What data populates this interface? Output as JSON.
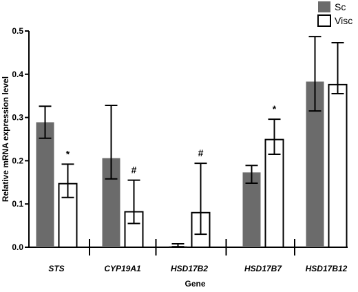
{
  "chart_data": {
    "type": "bar",
    "xlabel": "Gene",
    "ylabel": "Relative mRNA expression level",
    "ylim": [
      0,
      0.5
    ],
    "yticks": [
      "0.0",
      "0.1",
      "0.2",
      "0.3",
      "0.4",
      "0.5"
    ],
    "categories": [
      "STS",
      "CYP19A1",
      "HSD17B2",
      "HSD17B7",
      "HSD17B12"
    ],
    "legend_position": "top-right",
    "series": [
      {
        "name": "Sc",
        "color": "#6b6b6b",
        "fill": "solid",
        "values": [
          0.289,
          0.206,
          0.003,
          0.173,
          0.383
        ],
        "error_low": [
          0.252,
          0.158,
          0.001,
          0.148,
          0.315
        ],
        "error_high": [
          0.326,
          0.328,
          0.008,
          0.189,
          0.487
        ],
        "annotations": [
          "",
          "",
          "",
          "",
          ""
        ]
      },
      {
        "name": "Visc",
        "color": "#000000",
        "fill": "open",
        "values": [
          0.147,
          0.082,
          0.08,
          0.249,
          0.376
        ],
        "error_low": [
          0.115,
          0.055,
          0.03,
          0.215,
          0.355
        ],
        "error_high": [
          0.192,
          0.155,
          0.194,
          0.296,
          0.473
        ],
        "annotations": [
          "*",
          "#",
          "#",
          "*",
          ""
        ]
      }
    ]
  }
}
